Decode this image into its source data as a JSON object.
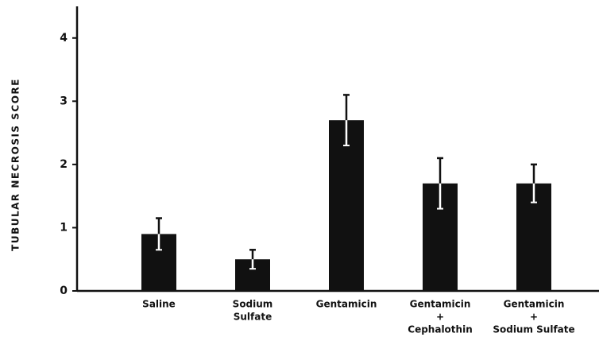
{
  "chart_data": {
    "type": "bar",
    "y_label": "TUBULAR NECROSIS SCORE",
    "categories": [
      [
        "Saline"
      ],
      [
        "Sodium",
        "Sulfate"
      ],
      [
        "Gentamicin"
      ],
      [
        "Gentamicin",
        "+",
        "Cephalothin"
      ],
      [
        "Gentamicin",
        "+",
        "Sodium Sulfate"
      ]
    ],
    "values": [
      0.9,
      0.5,
      2.7,
      1.7,
      1.7
    ],
    "errors": [
      0.25,
      0.15,
      0.4,
      0.4,
      0.3
    ],
    "color": "#111111",
    "ylim": [
      0,
      4.5
    ],
    "yticks": [
      0,
      1,
      2,
      3,
      4
    ],
    "grid": false
  }
}
